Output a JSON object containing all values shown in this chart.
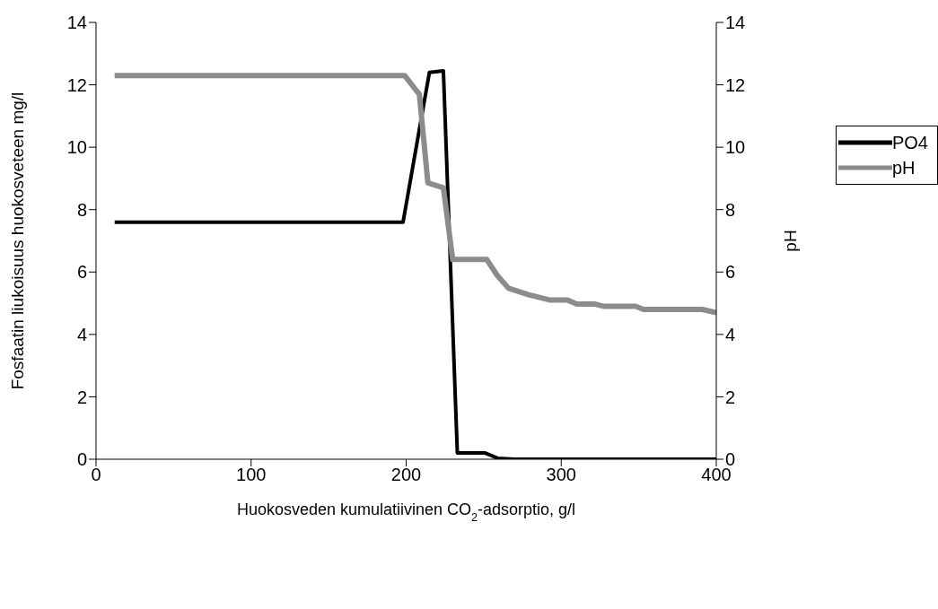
{
  "chart_data": {
    "type": "line",
    "xlabel": "Huokosveden kumulatiivinen CO$_{2}$-adsorptio, g/l",
    "ylabel": "Fosfaatin liukoisuus huokosveteen mg/l",
    "y2label": "pH",
    "xlim": [
      0,
      400
    ],
    "xticks": [
      0,
      100,
      200,
      300,
      400
    ],
    "ylim": [
      0,
      14
    ],
    "yticks": [
      0,
      2,
      4,
      6,
      8,
      10,
      12,
      14
    ],
    "y2lim": [
      0,
      14
    ],
    "y2ticks": [
      0,
      2,
      4,
      6,
      8,
      10,
      12,
      14
    ],
    "legend": "right",
    "marker": "none",
    "line_style": "solid",
    "series": [
      {
        "name": "PO4",
        "color": "#000000",
        "x": [
          12,
          198,
          215,
          224,
          233,
          251,
          259,
          270,
          400
        ],
        "values": [
          7.6,
          7.6,
          12.4,
          12.45,
          0.2,
          0.2,
          0.03,
          0,
          0
        ]
      },
      {
        "name": "pH",
        "color": "#8c8c8c",
        "axis": "y2",
        "x": [
          12,
          199,
          206,
          208.5,
          214,
          224,
          230,
          252,
          258.6,
          266,
          279,
          293,
          304,
          310,
          322,
          327.6,
          348,
          353,
          391,
          400
        ],
        "values": [
          12.3,
          12.3,
          11.85,
          11.7,
          8.86,
          8.7,
          6.4,
          6.4,
          5.9,
          5.48,
          5.27,
          5.1,
          5.1,
          4.97,
          4.97,
          4.9,
          4.9,
          4.8,
          4.8,
          4.7
        ]
      }
    ]
  }
}
